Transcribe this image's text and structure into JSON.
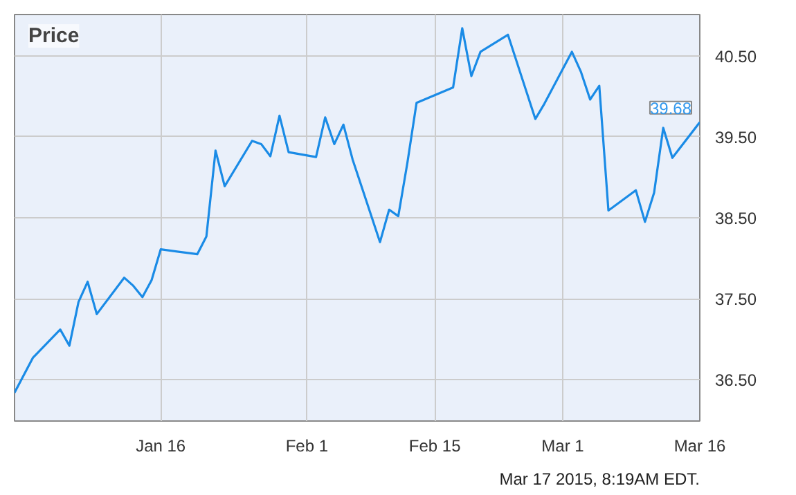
{
  "chart_data": {
    "type": "line",
    "title": "Price",
    "x": [
      "2014-12-31",
      "2015-01-02",
      "2015-01-05",
      "2015-01-06",
      "2015-01-07",
      "2015-01-08",
      "2015-01-09",
      "2015-01-12",
      "2015-01-13",
      "2015-01-14",
      "2015-01-15",
      "2015-01-16",
      "2015-01-20",
      "2015-01-21",
      "2015-01-22",
      "2015-01-23",
      "2015-01-26",
      "2015-01-27",
      "2015-01-28",
      "2015-01-29",
      "2015-01-30",
      "2015-02-02",
      "2015-02-03",
      "2015-02-04",
      "2015-02-05",
      "2015-02-06",
      "2015-02-09",
      "2015-02-10",
      "2015-02-11",
      "2015-02-12",
      "2015-02-13",
      "2015-02-17",
      "2015-02-18",
      "2015-02-19",
      "2015-02-20",
      "2015-02-23",
      "2015-02-26",
      "2015-02-27",
      "2015-03-02",
      "2015-03-03",
      "2015-03-04",
      "2015-03-05",
      "2015-03-06",
      "2015-03-09",
      "2015-03-10",
      "2015-03-11",
      "2015-03-12",
      "2015-03-13",
      "2015-03-16"
    ],
    "series": [
      {
        "color": "#1a8be6",
        "values": [
          36.34,
          36.77,
          37.12,
          36.92,
          37.46,
          37.71,
          37.31,
          37.76,
          37.66,
          37.52,
          37.73,
          38.11,
          38.05,
          38.27,
          39.33,
          38.89,
          39.45,
          39.41,
          39.26,
          39.76,
          39.31,
          39.25,
          39.74,
          39.41,
          39.65,
          39.22,
          38.2,
          38.6,
          38.52,
          39.18,
          39.92,
          40.11,
          40.84,
          40.25,
          40.55,
          40.76,
          39.72,
          39.91,
          40.55,
          40.3,
          39.96,
          40.13,
          38.59,
          38.84,
          38.45,
          38.81,
          39.61,
          39.24,
          39.68
        ]
      }
    ],
    "xlim": [
      "2014-12-31",
      "2015-03-16"
    ],
    "xticks": [
      {
        "value": "2015-01-16",
        "label": "Jan 16"
      },
      {
        "value": "2015-02-01",
        "label": "Feb 1"
      },
      {
        "value": "2015-02-15",
        "label": "Feb 15"
      },
      {
        "value": "2015-03-01",
        "label": "Mar 1"
      },
      {
        "value": "2015-03-16",
        "label": "Mar 16"
      }
    ],
    "ylim": [
      35.99,
      41.01
    ],
    "yticks": [
      {
        "value": 36.5,
        "label": "36.50"
      },
      {
        "value": 37.5,
        "label": "37.50"
      },
      {
        "value": 38.5,
        "label": "38.50"
      },
      {
        "value": 39.5,
        "label": "39.50"
      },
      {
        "value": 40.5,
        "label": "40.50"
      }
    ],
    "grid": true,
    "line_style": "solid",
    "marker": "none",
    "annotations": [
      {
        "text": "39.68",
        "x": "2015-03-16",
        "y": 39.68
      },
      "Mar 17 2015, 8:19AM EDT."
    ]
  }
}
